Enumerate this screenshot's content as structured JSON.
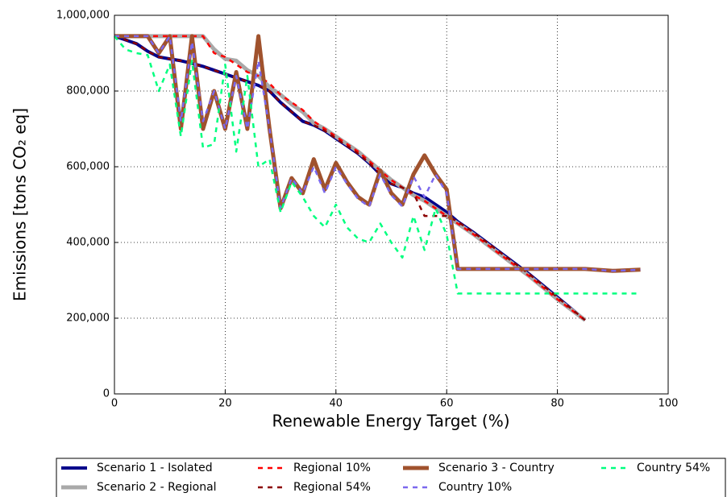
{
  "chart_data": {
    "type": "line",
    "xlabel": "Renewable Energy Target (%)",
    "ylabel": "Emissions [tons CO₂ eq]",
    "x": [
      0,
      2,
      4,
      6,
      8,
      10,
      12,
      14,
      16,
      18,
      20,
      22,
      24,
      26,
      28,
      30,
      32,
      34,
      36,
      38,
      40,
      42,
      44,
      46,
      48,
      50,
      52,
      54,
      56,
      58,
      60,
      62,
      65,
      70,
      75,
      80,
      85,
      90,
      95
    ],
    "xlim": [
      0,
      100
    ],
    "xticks": [
      0,
      20,
      40,
      60,
      80,
      100
    ],
    "ylim": [
      0,
      1000000
    ],
    "yticks": [
      0,
      {
        "value": 200000,
        "label": "200,000"
      },
      {
        "value": 400000,
        "label": "400,000"
      },
      {
        "value": 600000,
        "label": "600,000"
      },
      {
        "value": 800000,
        "label": "800,000"
      },
      {
        "value": 1000000,
        "label": "1,000,000"
      }
    ],
    "grid": true,
    "legend": "bottom",
    "series": [
      {
        "name": "Scenario 1 - Isolated",
        "color": "#00008b",
        "values": [
          945000,
          935000,
          925000,
          905000,
          890000,
          885000,
          880000,
          873000,
          865000,
          855000,
          845000,
          835000,
          825000,
          815000,
          800000,
          770000,
          745000,
          720000,
          710000,
          695000,
          675000,
          655000,
          635000,
          610000,
          580000,
          555000,
          545000,
          530000,
          520000,
          500000,
          480000,
          455000,
          425000,
          370000,
          315000,
          255000,
          195000,
          null,
          null
        ]
      },
      {
        "name": "Scenario 2 - Regional",
        "color": "#a9a9a9",
        "values": [
          945000,
          945000,
          945000,
          945000,
          945000,
          945000,
          945000,
          945000,
          945000,
          910000,
          885000,
          880000,
          855000,
          840000,
          810000,
          790000,
          765000,
          745000,
          715000,
          700000,
          680000,
          660000,
          640000,
          615000,
          590000,
          565000,
          545000,
          525000,
          510000,
          490000,
          470000,
          450000,
          420000,
          365000,
          310000,
          250000,
          195000,
          null,
          null
        ]
      },
      {
        "name": "Regional 10%",
        "color": "#ff0000",
        "values": [
          945000,
          945000,
          945000,
          945000,
          945000,
          945000,
          945000,
          945000,
          945000,
          900000,
          890000,
          870000,
          850000,
          840000,
          820000,
          790000,
          770000,
          750000,
          720000,
          700000,
          680000,
          660000,
          640000,
          615000,
          590000,
          565000,
          545000,
          525000,
          510000,
          490000,
          470000,
          450000,
          420000,
          365000,
          310000,
          250000,
          195000,
          null,
          null
        ]
      },
      {
        "name": "Regional 54%",
        "color": "#8b0000",
        "values": [
          945000,
          935000,
          925000,
          905000,
          890000,
          885000,
          880000,
          873000,
          865000,
          855000,
          845000,
          835000,
          825000,
          815000,
          800000,
          770000,
          745000,
          720000,
          710000,
          695000,
          675000,
          655000,
          635000,
          610000,
          580000,
          555000,
          545000,
          530000,
          470000,
          470000,
          470000,
          455000,
          425000,
          370000,
          315000,
          255000,
          195000,
          null,
          null
        ]
      },
      {
        "name": "Scenario 3 - Country",
        "color": "#a0522d",
        "values": [
          945000,
          945000,
          945000,
          945000,
          900000,
          945000,
          700000,
          945000,
          700000,
          800000,
          700000,
          850000,
          700000,
          945000,
          700000,
          490000,
          570000,
          530000,
          620000,
          540000,
          610000,
          560000,
          520000,
          500000,
          590000,
          530000,
          500000,
          580000,
          630000,
          580000,
          540000,
          330000,
          330000,
          330000,
          330000,
          330000,
          330000,
          325000,
          328000
        ]
      },
      {
        "name": "Country 10%",
        "color": "#7b68ee",
        "values": [
          945000,
          945000,
          945000,
          945000,
          900000,
          945000,
          720000,
          930000,
          720000,
          800000,
          700000,
          840000,
          700000,
          880000,
          700000,
          490000,
          570000,
          530000,
          600000,
          530000,
          600000,
          555000,
          515000,
          495000,
          580000,
          525000,
          495000,
          575000,
          520000,
          580000,
          530000,
          330000,
          330000,
          330000,
          330000,
          330000,
          330000,
          325000,
          328000
        ]
      },
      {
        "name": "Country 54%",
        "color": "#00ff7f",
        "values": [
          945000,
          910000,
          900000,
          895000,
          800000,
          870000,
          680000,
          880000,
          650000,
          660000,
          870000,
          640000,
          840000,
          600000,
          620000,
          480000,
          560000,
          520000,
          470000,
          440000,
          500000,
          440000,
          410000,
          400000,
          450000,
          400000,
          360000,
          470000,
          380000,
          490000,
          420000,
          265000,
          265000,
          265000,
          265000,
          265000,
          265000,
          265000,
          265000
        ]
      }
    ]
  }
}
